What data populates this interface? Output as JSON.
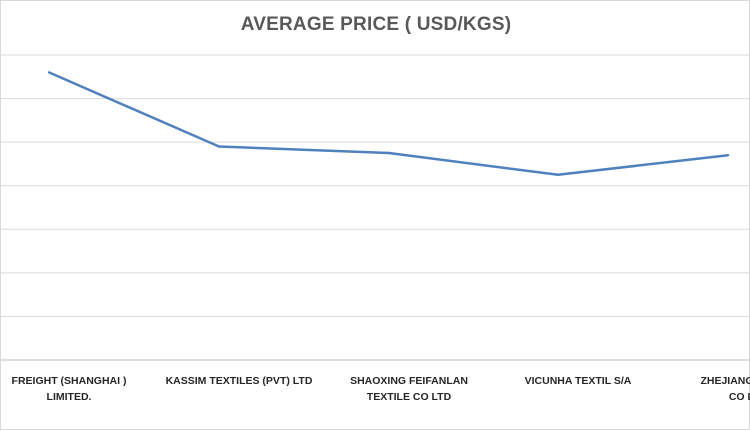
{
  "chart_data": {
    "type": "line",
    "title": "AVERAGE PRICE ( USD/KGS)",
    "xlabel": "",
    "ylabel": "",
    "categories": [
      [
        "FREIGHT (SHANGHAI )",
        "LIMITED."
      ],
      [
        "KASSIM TEXTILES (PVT) LTD"
      ],
      [
        "SHAOXING FEIFANLAN",
        "TEXTILE CO LTD"
      ],
      [
        "VICUNHA TEXTIL S/A"
      ],
      [
        "ZHEJIANG XINLAN",
        "CO LTD"
      ]
    ],
    "series": [
      {
        "values": [
          6.6,
          4.9,
          4.75,
          4.25,
          4.7
        ],
        "color": "#4f81bd"
      }
    ],
    "ylim": [
      0,
      7
    ],
    "grid": true,
    "legend": "none"
  }
}
